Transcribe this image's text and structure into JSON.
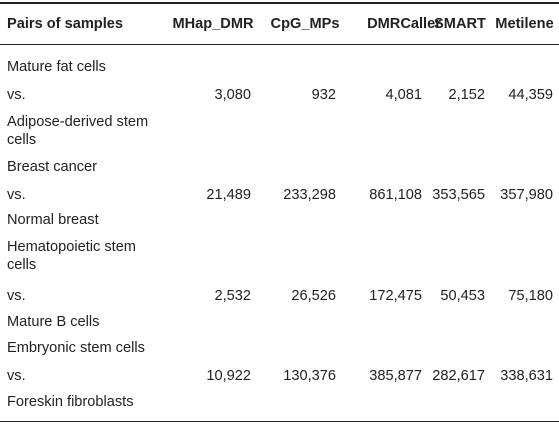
{
  "table": {
    "headers": [
      "Pairs of samples",
      "MHap_DMR",
      "CpG_MPs",
      "DMRCaller",
      "SMART",
      "Metilene"
    ],
    "rows": [
      {
        "pair": [
          "Mature fat cells",
          "vs.",
          "Adipose-derived stem cells"
        ],
        "values": [
          "3,080",
          "932",
          "4,081",
          "2,152",
          "44,359"
        ]
      },
      {
        "pair": [
          "Breast cancer",
          "vs.",
          "Normal breast"
        ],
        "values": [
          "21,489",
          "233,298",
          "861,108",
          "353,565",
          "357,980"
        ]
      },
      {
        "pair": [
          "Hematopoietic stem cells",
          "vs.",
          "Mature B cells"
        ],
        "values": [
          "2,532",
          "26,526",
          "172,475",
          "50,453",
          "75,180"
        ]
      },
      {
        "pair": [
          "Embryonic stem cells",
          "vs.",
          "Foreskin fibroblasts"
        ],
        "values": [
          "10,922",
          "130,376",
          "385,877",
          "282,617",
          "338,631"
        ]
      }
    ]
  }
}
